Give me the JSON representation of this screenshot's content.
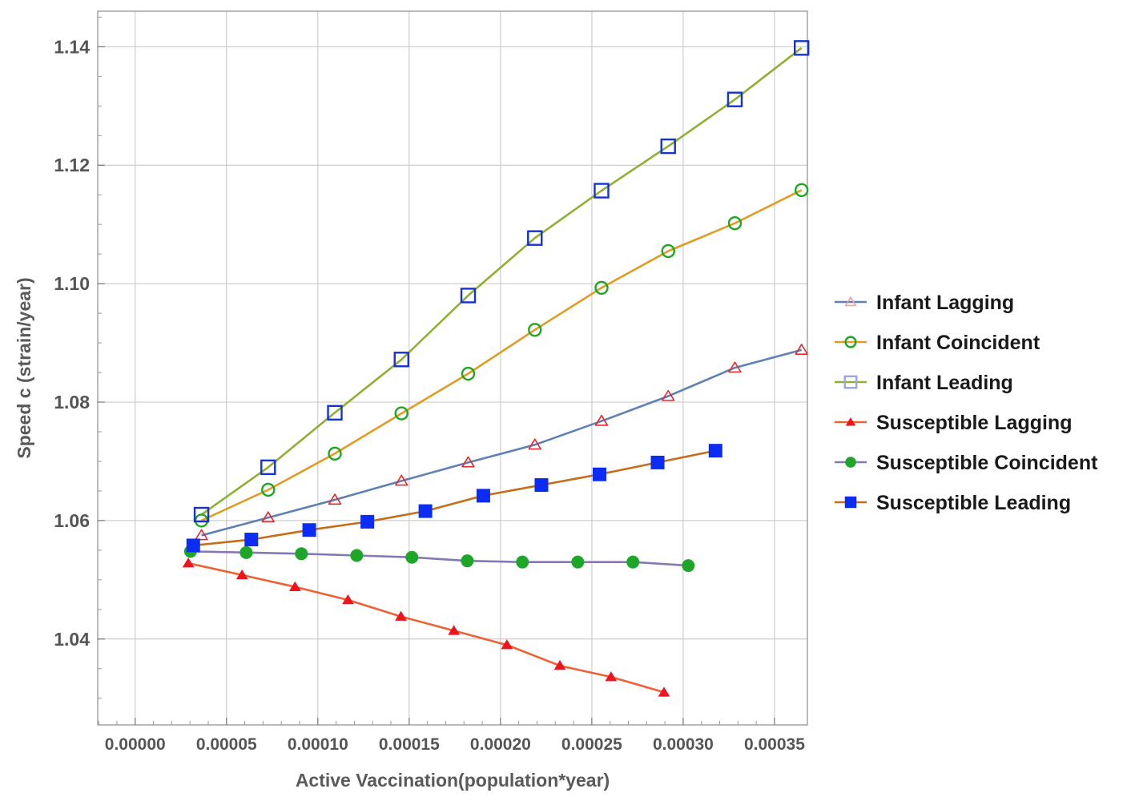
{
  "chart_data": {
    "type": "line",
    "xlabel": "Active Vaccination(population*year)",
    "ylabel": "Speed  c (strain/year)",
    "xlim": [
      -2.05e-05,
      0.000368
    ],
    "ylim": [
      1.0255,
      1.146
    ],
    "xticks": [
      "0.00000",
      "0.00005",
      "0.00010",
      "0.00015",
      "0.00020",
      "0.00025",
      "0.00030",
      "0.00035"
    ],
    "yticks": [
      "1.04",
      "1.06",
      "1.08",
      "1.10",
      "1.12",
      "1.14"
    ],
    "grid": true,
    "legend_position": "right",
    "series": [
      {
        "name": "Infant Lagging",
        "line_color": "#5e81b5",
        "marker": "triangle",
        "filled": false,
        "marker_color": "#e8262d",
        "x": [
          3.63e-05,
          7.28e-05,
          0.0001093,
          0.0001458,
          0.0001823,
          0.0002188,
          0.0002553,
          0.0002918,
          0.0003283,
          0.0003648
        ],
        "y": [
          1.0575,
          1.0605,
          1.0635,
          1.0667,
          1.0698,
          1.0728,
          1.0768,
          1.081,
          1.0858,
          1.0888
        ]
      },
      {
        "name": "Infant Coincident",
        "line_color": "#e19c24",
        "marker": "circle",
        "filled": false,
        "marker_color": "#21a624",
        "x": [
          3.63e-05,
          7.28e-05,
          0.0001093,
          0.0001458,
          0.0001823,
          0.0002188,
          0.0002553,
          0.0002918,
          0.0003283,
          0.0003648
        ],
        "y": [
          1.06,
          1.0652,
          1.0713,
          1.0781,
          1.0848,
          1.0922,
          1.0993,
          1.1055,
          1.1102,
          1.1158
        ]
      },
      {
        "name": "Infant Leading",
        "line_color": "#8fb032",
        "marker": "square",
        "filled": false,
        "marker_color": "#1533d5",
        "x": [
          3.63e-05,
          7.28e-05,
          0.0001093,
          0.0001458,
          0.0001823,
          0.0002188,
          0.0002553,
          0.0002918,
          0.0003283,
          0.0003648
        ],
        "y": [
          1.061,
          1.069,
          1.0782,
          1.0872,
          1.098,
          1.1077,
          1.1157,
          1.1232,
          1.1311,
          1.1398
        ]
      },
      {
        "name": "Susceptible Lagging",
        "line_color": "#eb6235",
        "marker": "triangle",
        "filled": true,
        "marker_color": "#f0131c",
        "x": [
          2.91e-05,
          5.85e-05,
          8.75e-05,
          0.0001165,
          0.0001455,
          0.0001745,
          0.0002035,
          0.0002325,
          0.0002605,
          0.0002895
        ],
        "y": [
          1.0528,
          1.0508,
          1.0488,
          1.0466,
          1.0438,
          1.0414,
          1.039,
          1.0355,
          1.0336,
          1.031
        ]
      },
      {
        "name": "Susceptible Coincident",
        "line_color": "#8778b3",
        "marker": "circle",
        "filled": true,
        "marker_color": "#1ea628",
        "x": [
          3.03e-05,
          6.08e-05,
          9.1e-05,
          0.0001213,
          0.0001515,
          0.0001818,
          0.000212,
          0.0002423,
          0.0002725,
          0.0003028
        ],
        "y": [
          1.0548,
          1.0546,
          1.0544,
          1.0541,
          1.0538,
          1.0532,
          1.053,
          1.053,
          1.053,
          1.0524
        ]
      },
      {
        "name": "Susceptible Leading",
        "line_color": "#c56e1a",
        "marker": "square",
        "filled": true,
        "marker_color": "#0b2cf2",
        "x": [
          3.18e-05,
          6.36e-05,
          9.53e-05,
          0.0001271,
          0.0001589,
          0.0001906,
          0.0002224,
          0.0002542,
          0.000286,
          0.0003177
        ],
        "y": [
          1.0558,
          1.0568,
          1.0584,
          1.0598,
          1.0616,
          1.0642,
          1.066,
          1.0678,
          1.0698,
          1.0718
        ]
      }
    ]
  }
}
